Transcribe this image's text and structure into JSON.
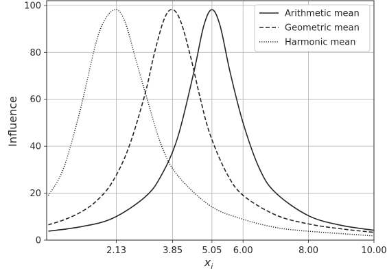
{
  "chart_data": {
    "type": "line",
    "title": "",
    "xlabel": "x",
    "xlabel_subscript": "i",
    "ylabel": "Influence",
    "xlim": [
      0,
      10
    ],
    "ylim": [
      0,
      102
    ],
    "xticks": [
      2.13,
      3.85,
      5.05,
      6.0,
      8.0,
      10.0
    ],
    "xtick_labels": [
      "2.13",
      "3.85",
      "5.05",
      "6.00",
      "8.00",
      "10.00"
    ],
    "yticks": [
      0,
      20,
      40,
      60,
      80,
      100
    ],
    "ytick_labels": [
      "0",
      "20",
      "40",
      "60",
      "80",
      "100"
    ],
    "grid": true,
    "legend_position": "top-right",
    "series": [
      {
        "name": "Arithmetic mean",
        "style": "solid",
        "color": "#262626",
        "x": [
          0.05,
          1.0,
          2.0,
          3.0,
          3.5,
          4.0,
          4.5,
          4.8,
          5.05,
          5.3,
          5.6,
          6.0,
          6.5,
          7.0,
          8.0,
          9.0,
          10.0
        ],
        "y": [
          3.8,
          5.6,
          9.2,
          18.3,
          27.5,
          43.6,
          71.8,
          91.3,
          98.2,
          91.3,
          71.8,
          50.0,
          30.5,
          20.1,
          10.4,
          6.3,
          4.2
        ]
      },
      {
        "name": "Geometric mean",
        "style": "dashed",
        "color": "#262626",
        "x": [
          0.05,
          0.5,
          1.0,
          1.5,
          2.0,
          2.5,
          3.0,
          3.3,
          3.6,
          3.85,
          4.1,
          4.4,
          4.7,
          5.0,
          5.5,
          6.0,
          7.0,
          8.0,
          9.0,
          10.0
        ],
        "y": [
          6.5,
          8.5,
          11.6,
          16.4,
          24.6,
          39.2,
          62.0,
          80.1,
          94.5,
          98.2,
          93.0,
          78.0,
          60.0,
          44.7,
          28.5,
          19.1,
          10.7,
          6.9,
          4.8,
          3.3
        ]
      },
      {
        "name": "Harmonic mean",
        "style": "dotted",
        "color": "#262626",
        "x": [
          0.05,
          0.5,
          1.0,
          1.5,
          1.8,
          2.13,
          2.4,
          2.7,
          3.0,
          3.5,
          4.0,
          5.0,
          6.0,
          7.0,
          8.0,
          10.0
        ],
        "y": [
          19.0,
          30.0,
          54.0,
          83.6,
          94.4,
          98.2,
          92.8,
          78.1,
          63.5,
          40.6,
          27.6,
          14.6,
          8.9,
          5.4,
          3.8,
          1.8
        ]
      }
    ]
  }
}
